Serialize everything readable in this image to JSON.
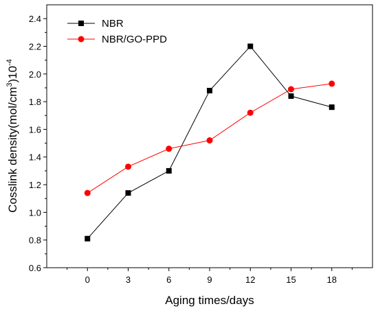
{
  "chart_data": {
    "type": "line",
    "title": "",
    "xlabel": "Aging times/days",
    "ylabel": {
      "prefix": "Cosslink density(mol/cm",
      "sup1": "3",
      "mid": ")10",
      "sup2": "-4"
    },
    "x": [
      0,
      3,
      6,
      9,
      12,
      15,
      18
    ],
    "x_tick_labels": [
      "0",
      "3",
      "6",
      "9",
      "12",
      "15",
      "18"
    ],
    "xlim": [
      -3,
      21
    ],
    "ylim": [
      0.6,
      2.5
    ],
    "y_ticks": [
      0.6,
      0.8,
      1.0,
      1.2,
      1.4,
      1.6,
      1.8,
      2.0,
      2.2,
      2.4
    ],
    "y_tick_labels": [
      "0.6",
      "0.8",
      "1.0",
      "1.2",
      "1.4",
      "1.6",
      "1.8",
      "2.0",
      "2.2",
      "2.4"
    ],
    "grid": false,
    "legend_position": "top-left",
    "series": [
      {
        "name": "NBR",
        "color": "#000000",
        "marker": "square",
        "values": [
          0.81,
          1.14,
          1.3,
          1.88,
          2.2,
          1.84,
          1.76
        ]
      },
      {
        "name": "NBR/GO-PPD",
        "color": "#ff0000",
        "marker": "circle",
        "values": [
          1.14,
          1.33,
          1.46,
          1.52,
          1.72,
          1.89,
          1.93
        ]
      }
    ]
  }
}
